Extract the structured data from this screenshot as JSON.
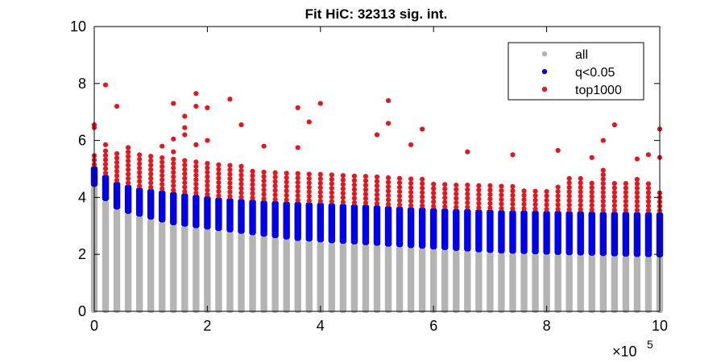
{
  "chart_data": {
    "type": "scatter",
    "title": "Fit HiC: 32313 sig. int.",
    "xlabel": "",
    "ylabel": "",
    "x_multiplier_label": "×10",
    "x_multiplier_exponent": "5",
    "xlim": [
      0,
      10
    ],
    "ylim": [
      0,
      10
    ],
    "x_ticks": [
      0,
      2,
      4,
      6,
      8,
      10
    ],
    "x_tick_labels": [
      "0",
      "2",
      "4",
      "6",
      "8",
      "10"
    ],
    "y_ticks": [
      0,
      2,
      4,
      6,
      8,
      10
    ],
    "y_tick_labels": [
      "0",
      "2",
      "4",
      "6",
      "8",
      "10"
    ],
    "grid": false,
    "legend_position": "top-right",
    "series": [
      {
        "name": "all",
        "color": "#b4b4b4"
      },
      {
        "name": "q<0.05",
        "color": "#0000ee"
      },
      {
        "name": "top1000",
        "color": "#e8141e"
      }
    ],
    "columns": {
      "x": [
        0.0,
        0.2,
        0.4,
        0.6,
        0.8,
        1.0,
        1.2,
        1.4,
        1.6,
        1.8,
        2.0,
        2.2,
        2.4,
        2.6,
        2.8,
        3.0,
        3.2,
        3.4,
        3.6,
        3.8,
        4.0,
        4.2,
        4.4,
        4.6,
        4.8,
        5.0,
        5.2,
        5.4,
        5.6,
        5.8,
        6.0,
        6.2,
        6.4,
        6.6,
        6.8,
        7.0,
        7.2,
        7.4,
        7.6,
        7.8,
        8.0,
        8.2,
        8.4,
        8.6,
        8.8,
        9.0,
        9.2,
        9.4,
        9.6,
        9.8,
        10.0
      ],
      "all_top": [
        4.4,
        3.9,
        3.6,
        3.45,
        3.35,
        3.25,
        3.15,
        3.05,
        3.0,
        2.95,
        2.9,
        2.85,
        2.8,
        2.75,
        2.7,
        2.65,
        2.6,
        2.55,
        2.5,
        2.48,
        2.45,
        2.42,
        2.4,
        2.38,
        2.35,
        2.33,
        2.3,
        2.28,
        2.25,
        2.23,
        2.2,
        2.18,
        2.15,
        2.13,
        2.1,
        2.08,
        2.06,
        2.05,
        2.04,
        2.03,
        2.02,
        2.01,
        2.0,
        1.99,
        1.98,
        1.97,
        1.96,
        1.95,
        1.94,
        1.93,
        1.92
      ],
      "q_top": [
        5.1,
        4.8,
        4.55,
        4.45,
        4.35,
        4.3,
        4.25,
        4.2,
        4.15,
        4.1,
        4.05,
        4.0,
        3.98,
        3.95,
        3.93,
        3.9,
        3.88,
        3.86,
        3.85,
        3.83,
        3.82,
        3.8,
        3.78,
        3.76,
        3.75,
        3.73,
        3.7,
        3.68,
        3.66,
        3.65,
        3.63,
        3.62,
        3.6,
        3.6,
        3.58,
        3.58,
        3.56,
        3.55,
        3.55,
        3.54,
        3.53,
        3.53,
        3.52,
        3.52,
        3.51,
        3.5,
        3.5,
        3.5,
        3.49,
        3.49,
        3.48
      ],
      "top_band": [
        5.6,
        5.75,
        5.6,
        5.6,
        5.55,
        5.5,
        5.45,
        5.35,
        5.3,
        5.25,
        5.3,
        5.2,
        5.15,
        5.1,
        5.05,
        5.0,
        5.0,
        4.95,
        4.95,
        4.9,
        4.9,
        4.85,
        4.85,
        4.8,
        4.75,
        4.75,
        4.7,
        4.7,
        4.65,
        4.65,
        4.6,
        4.6,
        4.55,
        4.55,
        4.5,
        4.5,
        4.45,
        4.4,
        4.35,
        4.3,
        4.3,
        4.4,
        4.8,
        4.7,
        4.5,
        5.0,
        4.6,
        4.5,
        4.7,
        4.6,
        4.2
      ]
    },
    "outliers_top1000": [
      {
        "x": 0.0,
        "y": 6.55
      },
      {
        "x": 0.0,
        "y": 6.45
      },
      {
        "x": 0.2,
        "y": 7.95
      },
      {
        "x": 0.2,
        "y": 5.85
      },
      {
        "x": 0.4,
        "y": 7.2
      },
      {
        "x": 0.6,
        "y": 5.75
      },
      {
        "x": 1.2,
        "y": 5.8
      },
      {
        "x": 1.4,
        "y": 7.3
      },
      {
        "x": 1.4,
        "y": 6.05
      },
      {
        "x": 1.4,
        "y": 5.6
      },
      {
        "x": 1.6,
        "y": 6.85
      },
      {
        "x": 1.6,
        "y": 6.45
      },
      {
        "x": 1.6,
        "y": 6.2
      },
      {
        "x": 1.8,
        "y": 7.65
      },
      {
        "x": 1.8,
        "y": 7.2
      },
      {
        "x": 1.8,
        "y": 5.85
      },
      {
        "x": 2.0,
        "y": 7.15
      },
      {
        "x": 2.0,
        "y": 6.0
      },
      {
        "x": 2.4,
        "y": 7.45
      },
      {
        "x": 2.6,
        "y": 6.55
      },
      {
        "x": 3.0,
        "y": 5.8
      },
      {
        "x": 3.6,
        "y": 7.15
      },
      {
        "x": 3.6,
        "y": 5.75
      },
      {
        "x": 3.8,
        "y": 6.65
      },
      {
        "x": 4.0,
        "y": 7.3
      },
      {
        "x": 5.0,
        "y": 6.2
      },
      {
        "x": 5.2,
        "y": 7.4
      },
      {
        "x": 5.2,
        "y": 6.6
      },
      {
        "x": 5.6,
        "y": 5.85
      },
      {
        "x": 5.8,
        "y": 6.4
      },
      {
        "x": 6.6,
        "y": 5.6
      },
      {
        "x": 7.4,
        "y": 5.5
      },
      {
        "x": 8.2,
        "y": 5.65
      },
      {
        "x": 8.8,
        "y": 5.4
      },
      {
        "x": 9.0,
        "y": 6.0
      },
      {
        "x": 9.2,
        "y": 6.55
      },
      {
        "x": 9.6,
        "y": 5.35
      },
      {
        "x": 9.8,
        "y": 5.5
      },
      {
        "x": 10.0,
        "y": 6.4
      },
      {
        "x": 10.0,
        "y": 5.4
      }
    ]
  }
}
